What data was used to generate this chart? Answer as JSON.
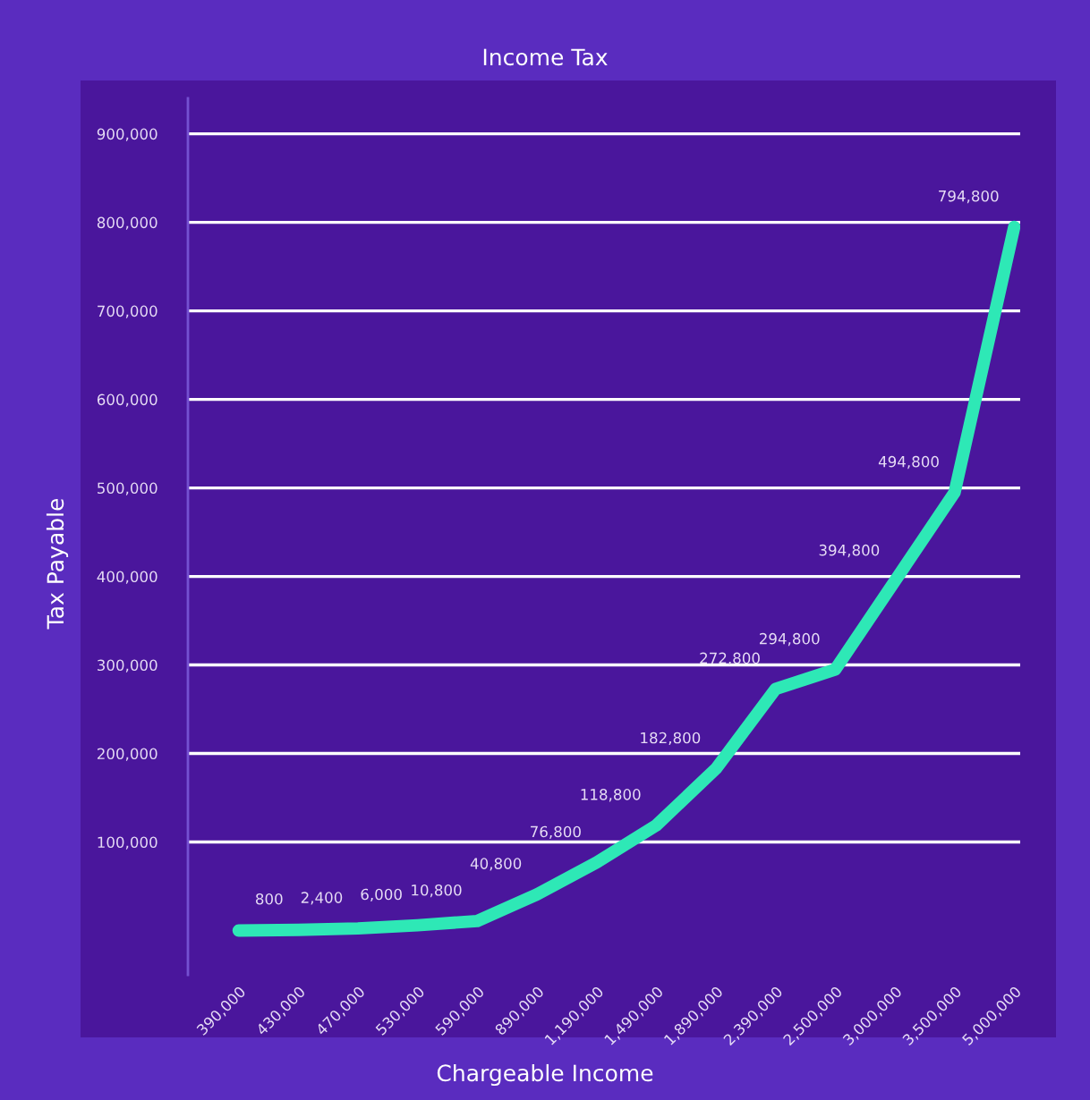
{
  "chart_data": {
    "type": "line",
    "title": "Income Tax",
    "xlabel": "Chargeable Income",
    "ylabel": "Tax Payable",
    "categories": [
      "390,000",
      "430,000",
      "470,000",
      "530,000",
      "590,000",
      "890,000",
      "1,190,000",
      "1,490,000",
      "1,890,000",
      "2,390,000",
      "2,500,000",
      "3,000,000",
      "3,500,000",
      "5,000,000"
    ],
    "series": [
      {
        "color": "#2ee8b6",
        "values": [
          0,
          800,
          2400,
          6000,
          10800,
          40800,
          76800,
          118800,
          182800,
          272800,
          294800,
          394800,
          494800,
          794800
        ],
        "value_labels": [
          null,
          "800",
          "2,400",
          "6,000",
          "10,800",
          "40,800",
          "76,800",
          "118,800",
          "182,800",
          "272,800",
          "294,800",
          "394,800",
          "494,800",
          "794,800"
        ]
      }
    ],
    "yticks": [
      {
        "value": 100000,
        "label": "100,000"
      },
      {
        "value": 200000,
        "label": "200,000"
      },
      {
        "value": 300000,
        "label": "300,000"
      },
      {
        "value": 400000,
        "label": "400,000"
      },
      {
        "value": 500000,
        "label": "500,000"
      },
      {
        "value": 600000,
        "label": "600,000"
      },
      {
        "value": 700000,
        "label": "700,000"
      },
      {
        "value": 800000,
        "label": "800,000"
      },
      {
        "value": 900000,
        "label": "900,000"
      }
    ],
    "ylim": [
      -50000,
      940000
    ],
    "grid": "y",
    "marker": "none",
    "line_style": "solid"
  }
}
